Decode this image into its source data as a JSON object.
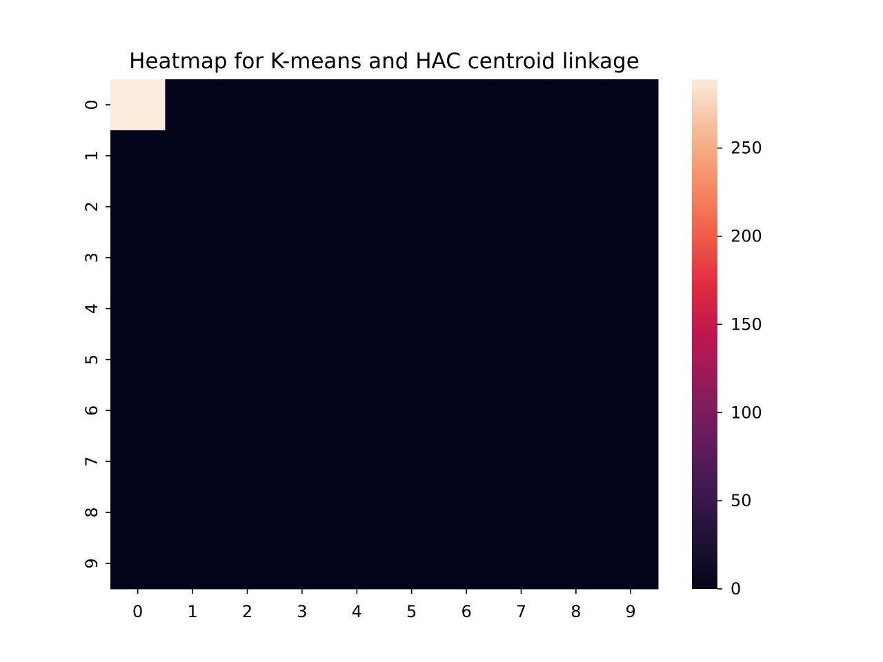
{
  "chart_data": {
    "type": "heatmap",
    "title": "Heatmap for K-means and HAC centroid linkage",
    "xlabel": "",
    "ylabel": "",
    "x_categories": [
      "0",
      "1",
      "2",
      "3",
      "4",
      "5",
      "6",
      "7",
      "8",
      "9"
    ],
    "y_categories": [
      "0",
      "1",
      "2",
      "3",
      "4",
      "5",
      "6",
      "7",
      "8",
      "9"
    ],
    "values": [
      [
        289,
        0,
        0,
        0,
        0,
        0,
        0,
        0,
        0,
        0
      ],
      [
        0,
        0,
        0,
        0,
        0,
        0,
        0,
        0,
        0,
        0
      ],
      [
        0,
        0,
        0,
        0,
        0,
        0,
        0,
        0,
        0,
        0
      ],
      [
        0,
        0,
        0,
        0,
        0,
        0,
        0,
        0,
        0,
        0
      ],
      [
        0,
        0,
        0,
        0,
        0,
        0,
        0,
        0,
        0,
        0
      ],
      [
        0,
        0,
        0,
        0,
        0,
        0,
        0,
        0,
        0,
        0
      ],
      [
        0,
        0,
        0,
        0,
        0,
        0,
        0,
        0,
        0,
        0
      ],
      [
        0,
        0,
        0,
        0,
        0,
        0,
        0,
        0,
        0,
        0
      ],
      [
        0,
        0,
        0,
        0,
        0,
        0,
        0,
        0,
        0,
        0
      ],
      [
        0,
        0,
        0,
        0,
        0,
        0,
        0,
        0,
        0,
        0
      ]
    ],
    "colorbar": {
      "min": 0,
      "max": 289,
      "ticks": [
        0,
        50,
        100,
        150,
        200,
        250
      ],
      "tick_labels": [
        "0",
        "50",
        "100",
        "150",
        "200",
        "250"
      ]
    },
    "colormap": "rocket",
    "colors": {
      "low": "#03051a",
      "high": "#faebdd"
    },
    "grid": false,
    "legend": "colorbar-right"
  }
}
